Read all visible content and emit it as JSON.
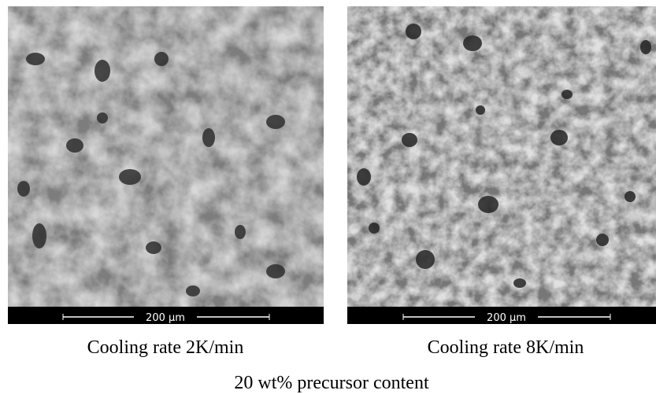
{
  "panels": [
    {
      "scale_bar": "200 µm",
      "caption": "Cooling rate 2K/min"
    },
    {
      "scale_bar": "200 µm",
      "caption": "Cooling rate 8K/min"
    }
  ],
  "caption": "20 wt% precursor content"
}
